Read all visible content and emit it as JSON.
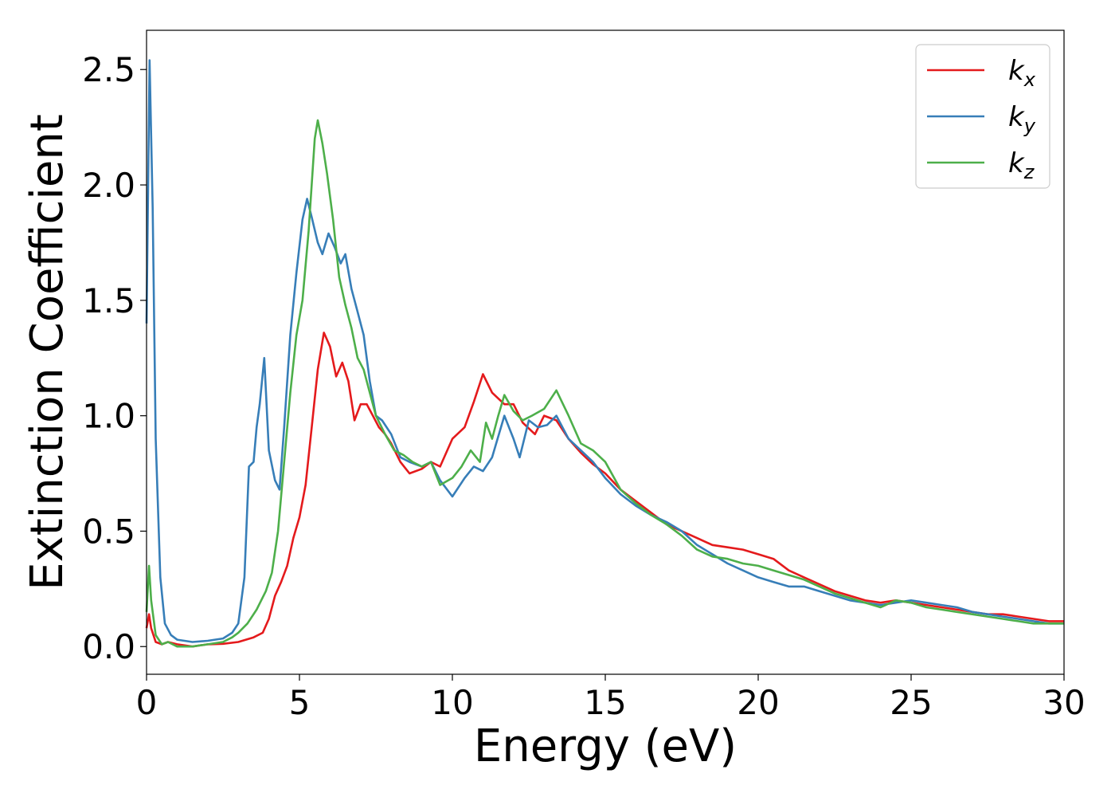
{
  "chart_data": {
    "type": "line",
    "xlabel": "Energy (eV)",
    "ylabel": "Extinction Coefficient",
    "xlim": [
      0,
      30
    ],
    "ylim": [
      -0.12,
      2.67
    ],
    "xticks": [
      0,
      5,
      10,
      15,
      20,
      25,
      30
    ],
    "xtick_labels": [
      "0",
      "5",
      "10",
      "15",
      "20",
      "25",
      "30"
    ],
    "yticks": [
      0.0,
      0.5,
      1.0,
      1.5,
      2.0,
      2.5
    ],
    "ytick_labels": [
      "0.0",
      "0.5",
      "1.0",
      "1.5",
      "2.0",
      "2.5"
    ],
    "grid": false,
    "legend_position": "top-right",
    "series": [
      {
        "name": "kx",
        "label_base": "k",
        "label_sub": "x",
        "color": "#e41a1c",
        "points": [
          [
            0,
            0.08
          ],
          [
            0.08,
            0.14
          ],
          [
            0.15,
            0.08
          ],
          [
            0.3,
            0.02
          ],
          [
            0.5,
            0.01
          ],
          [
            0.7,
            0.02
          ],
          [
            1.0,
            0.01
          ],
          [
            1.5,
            0.0
          ],
          [
            2.0,
            0.01
          ],
          [
            2.5,
            0.012
          ],
          [
            3.0,
            0.02
          ],
          [
            3.5,
            0.04
          ],
          [
            3.8,
            0.06
          ],
          [
            4.0,
            0.12
          ],
          [
            4.2,
            0.22
          ],
          [
            4.4,
            0.28
          ],
          [
            4.6,
            0.35
          ],
          [
            4.8,
            0.47
          ],
          [
            5.0,
            0.56
          ],
          [
            5.2,
            0.7
          ],
          [
            5.4,
            0.95
          ],
          [
            5.6,
            1.2
          ],
          [
            5.8,
            1.36
          ],
          [
            6.0,
            1.3
          ],
          [
            6.2,
            1.17
          ],
          [
            6.4,
            1.23
          ],
          [
            6.6,
            1.15
          ],
          [
            6.8,
            0.98
          ],
          [
            7.0,
            1.05
          ],
          [
            7.2,
            1.05
          ],
          [
            7.4,
            1.0
          ],
          [
            7.6,
            0.95
          ],
          [
            7.8,
            0.92
          ],
          [
            8.0,
            0.88
          ],
          [
            8.3,
            0.8
          ],
          [
            8.6,
            0.75
          ],
          [
            9.0,
            0.77
          ],
          [
            9.3,
            0.8
          ],
          [
            9.6,
            0.78
          ],
          [
            10.0,
            0.9
          ],
          [
            10.4,
            0.95
          ],
          [
            10.7,
            1.06
          ],
          [
            11.0,
            1.18
          ],
          [
            11.3,
            1.1
          ],
          [
            11.7,
            1.05
          ],
          [
            12.0,
            1.05
          ],
          [
            12.3,
            0.97
          ],
          [
            12.7,
            0.92
          ],
          [
            13.0,
            1.0
          ],
          [
            13.4,
            0.98
          ],
          [
            13.8,
            0.9
          ],
          [
            14.2,
            0.84
          ],
          [
            14.6,
            0.79
          ],
          [
            15.0,
            0.75
          ],
          [
            15.5,
            0.68
          ],
          [
            16.0,
            0.63
          ],
          [
            16.5,
            0.58
          ],
          [
            17.0,
            0.53
          ],
          [
            17.5,
            0.5
          ],
          [
            18.0,
            0.47
          ],
          [
            18.5,
            0.44
          ],
          [
            19.0,
            0.43
          ],
          [
            19.5,
            0.42
          ],
          [
            20.0,
            0.4
          ],
          [
            20.5,
            0.38
          ],
          [
            21.0,
            0.33
          ],
          [
            21.5,
            0.3
          ],
          [
            22.0,
            0.27
          ],
          [
            22.5,
            0.24
          ],
          [
            23.0,
            0.22
          ],
          [
            23.5,
            0.2
          ],
          [
            24.0,
            0.19
          ],
          [
            24.5,
            0.2
          ],
          [
            25.0,
            0.19
          ],
          [
            25.5,
            0.18
          ],
          [
            26.0,
            0.17
          ],
          [
            26.5,
            0.16
          ],
          [
            27.0,
            0.15
          ],
          [
            27.5,
            0.14
          ],
          [
            28.0,
            0.14
          ],
          [
            28.5,
            0.13
          ],
          [
            29.0,
            0.12
          ],
          [
            29.5,
            0.11
          ],
          [
            30.0,
            0.11
          ]
        ]
      },
      {
        "name": "ky",
        "label_base": "k",
        "label_sub": "y",
        "color": "#377eb8",
        "points": [
          [
            0,
            1.4
          ],
          [
            0.1,
            2.54
          ],
          [
            0.2,
            1.9
          ],
          [
            0.3,
            0.9
          ],
          [
            0.45,
            0.3
          ],
          [
            0.6,
            0.1
          ],
          [
            0.8,
            0.05
          ],
          [
            1.0,
            0.03
          ],
          [
            1.5,
            0.02
          ],
          [
            2.0,
            0.025
          ],
          [
            2.5,
            0.035
          ],
          [
            2.8,
            0.06
          ],
          [
            3.0,
            0.1
          ],
          [
            3.2,
            0.3
          ],
          [
            3.35,
            0.78
          ],
          [
            3.5,
            0.8
          ],
          [
            3.6,
            0.95
          ],
          [
            3.7,
            1.05
          ],
          [
            3.85,
            1.25
          ],
          [
            4.0,
            0.85
          ],
          [
            4.2,
            0.72
          ],
          [
            4.35,
            0.68
          ],
          [
            4.5,
            0.95
          ],
          [
            4.7,
            1.35
          ],
          [
            4.9,
            1.62
          ],
          [
            5.1,
            1.85
          ],
          [
            5.25,
            1.94
          ],
          [
            5.4,
            1.86
          ],
          [
            5.6,
            1.75
          ],
          [
            5.75,
            1.7
          ],
          [
            5.95,
            1.79
          ],
          [
            6.15,
            1.73
          ],
          [
            6.35,
            1.66
          ],
          [
            6.5,
            1.7
          ],
          [
            6.7,
            1.55
          ],
          [
            6.9,
            1.45
          ],
          [
            7.1,
            1.35
          ],
          [
            7.3,
            1.15
          ],
          [
            7.5,
            1.0
          ],
          [
            7.7,
            0.98
          ],
          [
            8.0,
            0.92
          ],
          [
            8.3,
            0.82
          ],
          [
            8.6,
            0.8
          ],
          [
            9.0,
            0.78
          ],
          [
            9.3,
            0.8
          ],
          [
            9.6,
            0.72
          ],
          [
            10.0,
            0.65
          ],
          [
            10.4,
            0.73
          ],
          [
            10.7,
            0.78
          ],
          [
            11.0,
            0.76
          ],
          [
            11.3,
            0.82
          ],
          [
            11.7,
            1.0
          ],
          [
            12.0,
            0.9
          ],
          [
            12.2,
            0.82
          ],
          [
            12.5,
            0.98
          ],
          [
            12.8,
            0.95
          ],
          [
            13.1,
            0.96
          ],
          [
            13.4,
            1.0
          ],
          [
            13.8,
            0.9
          ],
          [
            14.2,
            0.85
          ],
          [
            14.6,
            0.8
          ],
          [
            15.0,
            0.73
          ],
          [
            15.5,
            0.66
          ],
          [
            16.0,
            0.61
          ],
          [
            16.5,
            0.57
          ],
          [
            17.0,
            0.54
          ],
          [
            17.5,
            0.5
          ],
          [
            18.0,
            0.44
          ],
          [
            18.5,
            0.4
          ],
          [
            19.0,
            0.36
          ],
          [
            19.5,
            0.33
          ],
          [
            20.0,
            0.3
          ],
          [
            20.5,
            0.28
          ],
          [
            21.0,
            0.26
          ],
          [
            21.5,
            0.26
          ],
          [
            22.0,
            0.24
          ],
          [
            22.5,
            0.22
          ],
          [
            23.0,
            0.2
          ],
          [
            23.5,
            0.19
          ],
          [
            24.0,
            0.18
          ],
          [
            24.5,
            0.19
          ],
          [
            25.0,
            0.2
          ],
          [
            25.5,
            0.19
          ],
          [
            26.0,
            0.18
          ],
          [
            26.5,
            0.17
          ],
          [
            27.0,
            0.15
          ],
          [
            27.5,
            0.14
          ],
          [
            28.0,
            0.13
          ],
          [
            28.5,
            0.12
          ],
          [
            29.0,
            0.11
          ],
          [
            29.5,
            0.1
          ],
          [
            30.0,
            0.1
          ]
        ]
      },
      {
        "name": "kz",
        "label_base": "k",
        "label_sub": "z",
        "color": "#4daf4a",
        "points": [
          [
            0,
            0.15
          ],
          [
            0.08,
            0.35
          ],
          [
            0.15,
            0.2
          ],
          [
            0.3,
            0.05
          ],
          [
            0.5,
            0.01
          ],
          [
            0.7,
            0.02
          ],
          [
            1.0,
            0.0
          ],
          [
            1.5,
            0.0
          ],
          [
            2.0,
            0.01
          ],
          [
            2.5,
            0.02
          ],
          [
            2.8,
            0.04
          ],
          [
            3.0,
            0.06
          ],
          [
            3.3,
            0.1
          ],
          [
            3.6,
            0.16
          ],
          [
            3.9,
            0.24
          ],
          [
            4.1,
            0.32
          ],
          [
            4.3,
            0.5
          ],
          [
            4.5,
            0.8
          ],
          [
            4.7,
            1.1
          ],
          [
            4.9,
            1.35
          ],
          [
            5.1,
            1.5
          ],
          [
            5.3,
            1.8
          ],
          [
            5.5,
            2.2
          ],
          [
            5.6,
            2.28
          ],
          [
            5.75,
            2.18
          ],
          [
            5.9,
            2.05
          ],
          [
            6.1,
            1.85
          ],
          [
            6.3,
            1.6
          ],
          [
            6.5,
            1.48
          ],
          [
            6.7,
            1.38
          ],
          [
            6.9,
            1.25
          ],
          [
            7.1,
            1.2
          ],
          [
            7.3,
            1.1
          ],
          [
            7.5,
            1.0
          ],
          [
            7.8,
            0.92
          ],
          [
            8.1,
            0.85
          ],
          [
            8.4,
            0.83
          ],
          [
            8.7,
            0.8
          ],
          [
            9.0,
            0.78
          ],
          [
            9.3,
            0.8
          ],
          [
            9.6,
            0.7
          ],
          [
            10.0,
            0.73
          ],
          [
            10.3,
            0.78
          ],
          [
            10.6,
            0.85
          ],
          [
            10.9,
            0.8
          ],
          [
            11.1,
            0.97
          ],
          [
            11.3,
            0.9
          ],
          [
            11.5,
            1.0
          ],
          [
            11.7,
            1.09
          ],
          [
            12.0,
            1.02
          ],
          [
            12.3,
            0.98
          ],
          [
            12.6,
            1.0
          ],
          [
            13.0,
            1.03
          ],
          [
            13.4,
            1.11
          ],
          [
            13.8,
            1.0
          ],
          [
            14.2,
            0.88
          ],
          [
            14.6,
            0.85
          ],
          [
            15.0,
            0.8
          ],
          [
            15.5,
            0.68
          ],
          [
            16.0,
            0.62
          ],
          [
            16.5,
            0.57
          ],
          [
            17.0,
            0.53
          ],
          [
            17.5,
            0.48
          ],
          [
            18.0,
            0.42
          ],
          [
            18.5,
            0.39
          ],
          [
            19.0,
            0.38
          ],
          [
            19.5,
            0.36
          ],
          [
            20.0,
            0.35
          ],
          [
            20.5,
            0.33
          ],
          [
            21.0,
            0.31
          ],
          [
            21.5,
            0.29
          ],
          [
            22.0,
            0.26
          ],
          [
            22.5,
            0.23
          ],
          [
            23.0,
            0.21
          ],
          [
            23.5,
            0.19
          ],
          [
            24.0,
            0.17
          ],
          [
            24.5,
            0.2
          ],
          [
            25.0,
            0.19
          ],
          [
            25.5,
            0.17
          ],
          [
            26.0,
            0.16
          ],
          [
            26.5,
            0.15
          ],
          [
            27.0,
            0.14
          ],
          [
            27.5,
            0.13
          ],
          [
            28.0,
            0.12
          ],
          [
            28.5,
            0.11
          ],
          [
            29.0,
            0.1
          ],
          [
            29.5,
            0.1
          ],
          [
            30.0,
            0.1
          ]
        ]
      }
    ]
  }
}
